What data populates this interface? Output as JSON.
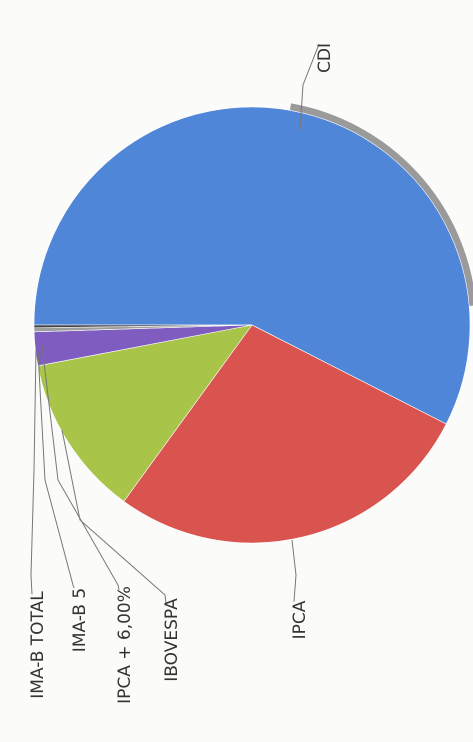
{
  "chart_data": {
    "type": "pie",
    "title": "",
    "slices": [
      {
        "label": "CDI",
        "value": 57.5,
        "color": "#4f86d8"
      },
      {
        "label": "IPCA",
        "value": 27.5,
        "color": "#d9534f"
      },
      {
        "label": "IBOVESPA",
        "value": 12.0,
        "color": "#a8c449"
      },
      {
        "label": "IPCA + 6,00%",
        "value": 2.5,
        "color": "#7e5cc0"
      },
      {
        "label": "IMA-B 5",
        "value": 0.3,
        "color": "#9e9e9e"
      },
      {
        "label": "IMA-B TOTAL",
        "value": 0.2,
        "color": "#444444"
      }
    ],
    "legend": "none",
    "labels_rotated": true
  }
}
